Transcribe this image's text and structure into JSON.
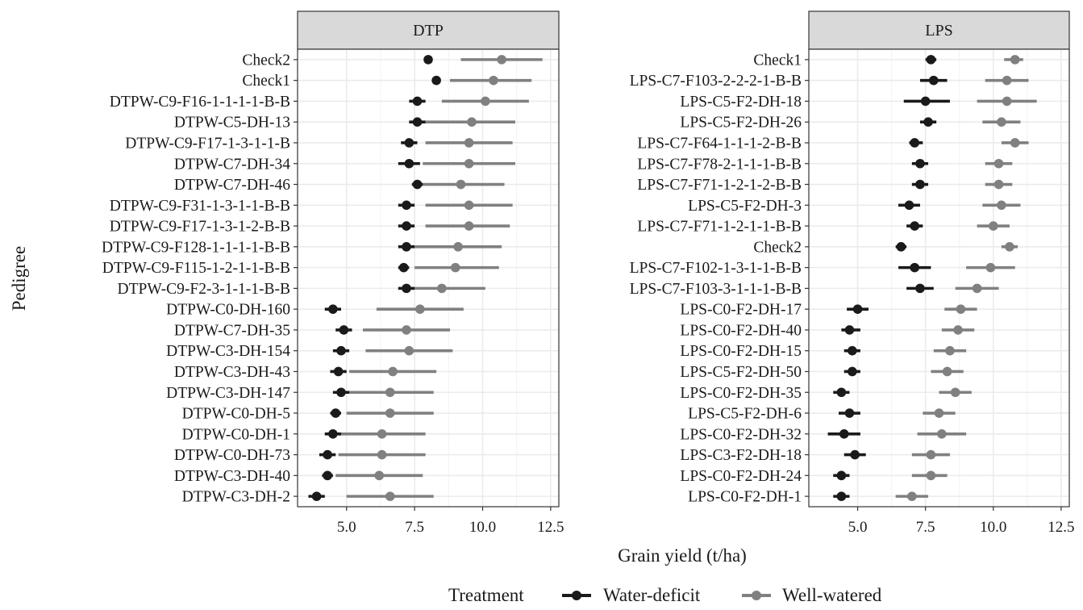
{
  "chart_data": {
    "type": "scatter",
    "xlabel": "Grain yield (t/ha)",
    "ylabel": "Pedigree",
    "xticks": [
      5.0,
      7.5,
      10.0,
      12.5
    ],
    "xtick_labels": [
      "5.0",
      "7.5",
      "10.0",
      "12.5"
    ],
    "xlim": [
      3.2,
      12.8
    ],
    "grid": true,
    "legend": {
      "title": "Treatment",
      "position": "bottom",
      "entries": [
        {
          "label": "Water-deficit",
          "color": "#1a1a1a"
        },
        {
          "label": "Well-watered",
          "color": "#808080"
        }
      ]
    },
    "colors": {
      "water_deficit": "#1a1a1a",
      "well_watered": "#808080",
      "strip": "#d9d9d9",
      "grid": "#ebebeb"
    },
    "panels": [
      {
        "title": "DTP",
        "pedigrees": [
          "Check2",
          "Check1",
          "DTPW-C9-F16-1-1-1-1-B-B",
          "DTPW-C5-DH-13",
          "DTPW-C9-F17-1-3-1-1-B",
          "DTPW-C7-DH-34",
          "DTPW-C7-DH-46",
          "DTPW-C9-F31-1-3-1-1-B-B",
          "DTPW-C9-F17-1-3-1-2-B-B",
          "DTPW-C9-F128-1-1-1-1-B-B",
          "DTPW-C9-F115-1-2-1-1-B-B",
          "DTPW-C9-F2-3-1-1-1-B-B",
          "DTPW-C0-DH-160",
          "DTPW-C7-DH-35",
          "DTPW-C3-DH-154",
          "DTPW-C3-DH-43",
          "DTPW-C3-DH-147",
          "DTPW-C0-DH-5",
          "DTPW-C0-DH-1",
          "DTPW-C0-DH-73",
          "DTPW-C3-DH-40",
          "DTPW-C3-DH-2"
        ],
        "series": [
          {
            "name": "Water-deficit",
            "mean": [
              8.0,
              8.3,
              7.6,
              7.6,
              7.3,
              7.3,
              7.6,
              7.2,
              7.2,
              7.2,
              7.1,
              7.2,
              4.5,
              4.9,
              4.8,
              4.7,
              4.8,
              4.6,
              4.5,
              4.3,
              4.3,
              3.9
            ],
            "lower": [
              7.9,
              8.2,
              7.3,
              7.3,
              7.0,
              6.9,
              7.4,
              6.9,
              6.9,
              6.9,
              6.9,
              6.9,
              4.2,
              4.6,
              4.5,
              4.4,
              4.5,
              4.4,
              4.2,
              4.0,
              4.1,
              3.6
            ],
            "upper": [
              8.1,
              8.4,
              7.9,
              7.9,
              7.6,
              7.7,
              7.8,
              7.5,
              7.5,
              7.5,
              7.3,
              7.5,
              4.8,
              5.2,
              5.1,
              5.0,
              5.1,
              4.8,
              4.8,
              4.6,
              4.5,
              4.2
            ]
          },
          {
            "name": "Well-watered",
            "mean": [
              10.7,
              10.4,
              10.1,
              9.6,
              9.5,
              9.5,
              9.2,
              9.5,
              9.5,
              9.1,
              9.0,
              8.5,
              7.7,
              7.2,
              7.3,
              6.7,
              6.6,
              6.6,
              6.3,
              6.3,
              6.2,
              6.6
            ],
            "lower": [
              9.2,
              8.8,
              8.5,
              7.9,
              7.9,
              7.8,
              7.6,
              7.9,
              7.9,
              7.5,
              7.5,
              6.9,
              6.1,
              5.6,
              5.7,
              5.1,
              5.0,
              5.0,
              4.7,
              4.7,
              4.6,
              5.0
            ],
            "upper": [
              12.2,
              11.8,
              11.7,
              11.2,
              11.1,
              11.2,
              10.8,
              11.1,
              11.0,
              10.7,
              10.6,
              10.1,
              9.3,
              8.8,
              8.9,
              8.3,
              8.2,
              8.2,
              7.9,
              7.9,
              7.8,
              8.2
            ]
          }
        ]
      },
      {
        "title": "LPS",
        "pedigrees": [
          "Check1",
          "LPS-C7-F103-2-2-2-1-B-B",
          "LPS-C5-F2-DH-18",
          "LPS-C5-F2-DH-26",
          "LPS-C7-F64-1-1-1-2-B-B",
          "LPS-C7-F78-2-1-1-1-B-B",
          "LPS-C7-F71-1-2-1-2-B-B",
          "LPS-C5-F2-DH-3",
          "LPS-C7-F71-1-2-1-1-B-B",
          "Check2",
          "LPS-C7-F102-1-3-1-1-B-B",
          "LPS-C7-F103-3-1-1-1-B-B",
          "LPS-C0-F2-DH-17",
          "LPS-C0-F2-DH-40",
          "LPS-C0-F2-DH-15",
          "LPS-C5-F2-DH-50",
          "LPS-C0-F2-DH-35",
          "LPS-C5-F2-DH-6",
          "LPS-C0-F2-DH-32",
          "LPS-C3-F2-DH-18",
          "LPS-C0-F2-DH-24",
          "LPS-C0-F2-DH-1"
        ],
        "series": [
          {
            "name": "Water-deficit",
            "mean": [
              7.7,
              7.8,
              7.5,
              7.6,
              7.1,
              7.3,
              7.3,
              6.9,
              7.1,
              6.6,
              7.1,
              7.3,
              5.0,
              4.7,
              4.8,
              4.8,
              4.4,
              4.7,
              4.5,
              4.9,
              4.4,
              4.4
            ],
            "lower": [
              7.5,
              7.3,
              6.7,
              7.3,
              6.9,
              7.0,
              7.0,
              6.5,
              6.8,
              6.4,
              6.5,
              6.8,
              4.6,
              4.4,
              4.5,
              4.5,
              4.1,
              4.3,
              3.9,
              4.5,
              4.1,
              4.1
            ],
            "upper": [
              7.9,
              8.3,
              8.4,
              7.9,
              7.4,
              7.6,
              7.6,
              7.3,
              7.4,
              6.8,
              7.7,
              7.8,
              5.4,
              5.1,
              5.1,
              5.1,
              4.7,
              5.1,
              5.1,
              5.3,
              4.7,
              4.7
            ]
          },
          {
            "name": "Well-watered",
            "mean": [
              10.8,
              10.5,
              10.5,
              10.3,
              10.8,
              10.2,
              10.2,
              10.3,
              10.0,
              10.6,
              9.9,
              9.4,
              8.8,
              8.7,
              8.4,
              8.3,
              8.6,
              8.0,
              8.1,
              7.7,
              7.7,
              7.0
            ],
            "lower": [
              10.4,
              9.7,
              9.4,
              9.6,
              10.3,
              9.7,
              9.7,
              9.6,
              9.4,
              10.3,
              9.0,
              8.6,
              8.2,
              8.1,
              7.8,
              7.7,
              8.0,
              7.4,
              7.2,
              7.0,
              7.0,
              6.4
            ],
            "upper": [
              11.1,
              11.3,
              11.6,
              11.0,
              11.3,
              10.7,
              10.7,
              11.0,
              10.6,
              10.9,
              10.8,
              10.2,
              9.4,
              9.3,
              9.0,
              8.9,
              9.2,
              8.6,
              9.0,
              8.4,
              8.3,
              7.6
            ]
          }
        ]
      }
    ]
  }
}
